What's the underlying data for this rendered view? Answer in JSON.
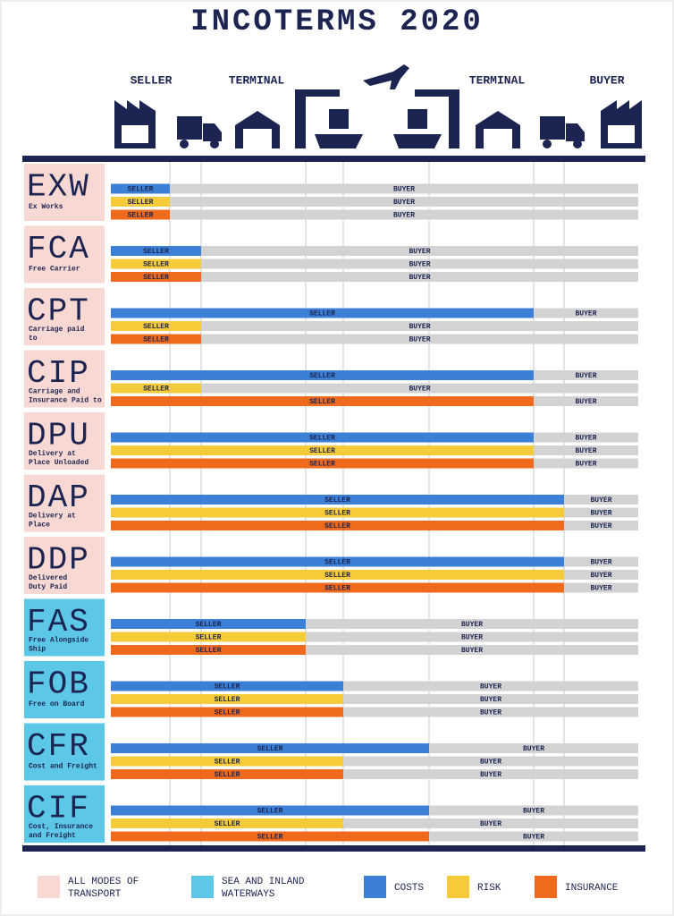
{
  "title": "INCOTERMS 2020",
  "header": [
    "SELLER",
    "TERMINAL",
    "TERMINAL",
    "BUYER"
  ],
  "bar_colors": [
    "#3b7fd6",
    "#f6cb3a",
    "#f06a1e"
  ],
  "sections": [
    {
      "color": "#f8d8d2",
      "rows": [
        {
          "code": "EXW",
          "name": [
            "Ex Works"
          ],
          "bars": [
            {
              "seller": "SELLER",
              "buyer": "BUYER",
              "split": 0
            },
            {
              "seller": "SELLER",
              "buyer": "BUYER",
              "split": 0
            },
            {
              "seller": "SELLER",
              "buyer": "BUYER",
              "split": 0
            }
          ]
        },
        {
          "code": "FCA",
          "name": [
            "Free Carrier"
          ],
          "bars": [
            {
              "seller": "SELLER",
              "buyer": "BUYER",
              "split": 1
            },
            {
              "seller": "SELLER",
              "buyer": "BUYER",
              "split": 1
            },
            {
              "seller": "SELLER",
              "buyer": "BUYER",
              "split": 1
            }
          ]
        },
        {
          "code": "CPT",
          "name": [
            "Carriage paid",
            "to"
          ],
          "bars": [
            {
              "seller": "SELLER",
              "buyer": "BUYER",
              "split": 5
            },
            {
              "seller": "SELLER",
              "buyer": "BUYER",
              "split": 1
            },
            {
              "seller": "SELLER",
              "buyer": "BUYER",
              "split": 1
            }
          ]
        },
        {
          "code": "CIP",
          "name": [
            "Carriage and",
            "Insurance Paid to"
          ],
          "bars": [
            {
              "seller": "SELLER",
              "buyer": "BUYER",
              "split": 5
            },
            {
              "seller": "SELLER",
              "buyer": "BUYER",
              "split": 1
            },
            {
              "seller": "SELLER",
              "buyer": "BUYER",
              "split": 5
            }
          ]
        },
        {
          "code": "DPU",
          "name": [
            "Delivery at",
            "Place Unloaded"
          ],
          "bars": [
            {
              "seller": "SELLER",
              "buyer": "BUYER",
              "split": 5
            },
            {
              "seller": "SELLER",
              "buyer": "BUYER",
              "split": 5
            },
            {
              "seller": "SELLER",
              "buyer": "BUYER",
              "split": 5
            }
          ]
        },
        {
          "code": "DAP",
          "name": [
            "Delivery at",
            "Place"
          ],
          "bars": [
            {
              "seller": "SELLER",
              "buyer": "BUYER",
              "split": 6
            },
            {
              "seller": "SELLER",
              "buyer": "BUYER",
              "split": 6
            },
            {
              "seller": "SELLER",
              "buyer": "BUYER",
              "split": 6
            }
          ]
        },
        {
          "code": "DDP",
          "name": [
            "Delivered",
            "Duty Paid"
          ],
          "bars": [
            {
              "seller": "SELLER",
              "buyer": "BUYER",
              "split": 6
            },
            {
              "seller": "SELLER",
              "buyer": "BUYER",
              "split": 6
            },
            {
              "seller": "SELLER",
              "buyer": "BUYER",
              "split": 6
            }
          ]
        }
      ]
    },
    {
      "color": "#5cc7e6",
      "rows": [
        {
          "code": "FAS",
          "name": [
            "Free Alongside",
            "Ship"
          ],
          "bars": [
            {
              "seller": "SELLER",
              "buyer": "BUYER",
              "split": 2
            },
            {
              "seller": "SELLER",
              "buyer": "BUYER",
              "split": 2
            },
            {
              "seller": "SELLER",
              "buyer": "BUYER",
              "split": 2
            }
          ]
        },
        {
          "code": "FOB",
          "name": [
            "Free on Board"
          ],
          "bars": [
            {
              "seller": "SELLER",
              "buyer": "BUYER",
              "split": 3
            },
            {
              "seller": "SELLER",
              "buyer": "BUYER",
              "split": 3
            },
            {
              "seller": "SELLER",
              "buyer": "BUYER",
              "split": 3
            }
          ]
        },
        {
          "code": "CFR",
          "name": [
            "Cost and Freight"
          ],
          "bars": [
            {
              "seller": "SELLER",
              "buyer": "BUYER",
              "split": 4
            },
            {
              "seller": "SELLER",
              "buyer": "BUYER",
              "split": 3
            },
            {
              "seller": "SELLER",
              "buyer": "BUYER",
              "split": 3
            }
          ]
        },
        {
          "code": "CIF",
          "name": [
            "Cost, Insurance",
            "and Freight"
          ],
          "bars": [
            {
              "seller": "SELLER",
              "buyer": "BUYER",
              "split": 4
            },
            {
              "seller": "SELLER",
              "buyer": "BUYER",
              "split": 3
            },
            {
              "seller": "SELLER",
              "buyer": "BUYER",
              "split": 4
            }
          ]
        }
      ]
    }
  ],
  "legend": [
    {
      "label": [
        "ALL MODES OF",
        "TRANSPORT"
      ],
      "color": "#f8d8d2"
    },
    {
      "label": [
        "SEA AND INLAND",
        "WATERWAYS"
      ],
      "color": "#5cc7e6"
    },
    {
      "label": [
        "COSTS"
      ],
      "color": "#3b7fd6"
    },
    {
      "label": [
        "RISK"
      ],
      "color": "#f6cb3a"
    },
    {
      "label": [
        "INSURANCE"
      ],
      "color": "#f06a1e"
    }
  ]
}
